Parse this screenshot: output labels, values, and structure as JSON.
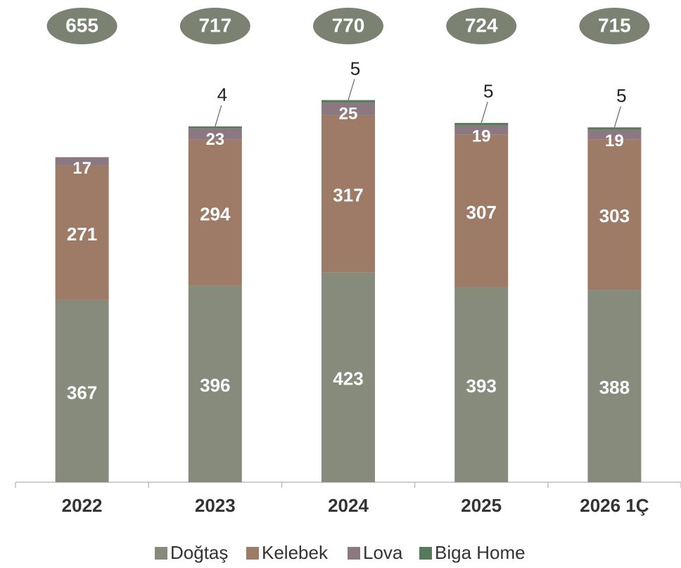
{
  "chart_data": {
    "type": "stacked_bar",
    "categories": [
      "2022",
      "2023",
      "2024",
      "2025",
      "2026 1Ç"
    ],
    "series": [
      {
        "name": "Doğtaş",
        "color": "#868b7c",
        "values": [
          367,
          396,
          423,
          393,
          388
        ]
      },
      {
        "name": "Kelebek",
        "color": "#9e7b67",
        "values": [
          271,
          294,
          317,
          307,
          303
        ]
      },
      {
        "name": "Lova",
        "color": "#8c7880",
        "values": [
          17,
          23,
          25,
          19,
          19
        ]
      },
      {
        "name": "Biga Home",
        "color": "#567a5a",
        "values": [
          null,
          4,
          5,
          5,
          5
        ]
      }
    ],
    "totals": [
      655,
      717,
      770,
      724,
      715
    ],
    "legend": "bottom"
  }
}
